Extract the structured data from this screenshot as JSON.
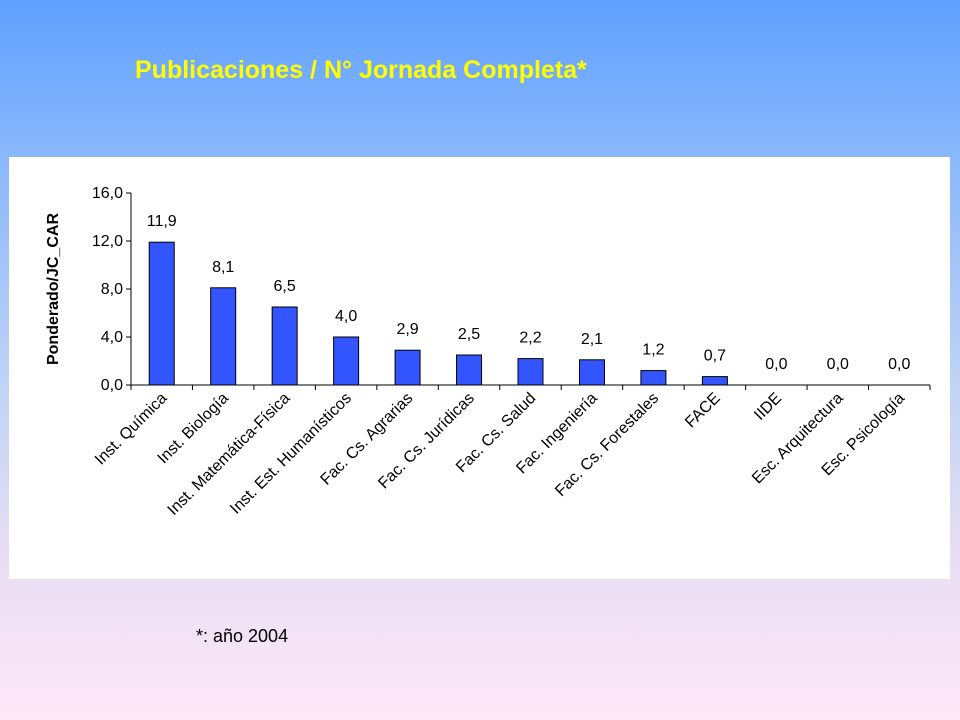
{
  "slide": {
    "title": "Publicaciones / N° Jornada Completa*",
    "footnote": "*: año 2004"
  },
  "chart_data": {
    "type": "bar",
    "title": "Publicaciones / N° Jornada Completa*",
    "xlabel": "",
    "ylabel": "Ponderado/JC_CAR",
    "ylim": [
      0,
      16
    ],
    "yticks": [
      0,
      4,
      8,
      12,
      16
    ],
    "ytick_labels": [
      "0,0",
      "4,0",
      "8,0",
      "12,0",
      "16,0"
    ],
    "grid": false,
    "legend": "none",
    "bar_color": "#3355ff",
    "categories": [
      "Inst. Química",
      "Inst. Biología",
      "Inst. Matemática-Física",
      "Inst. Est. Humanísticos",
      "Fac. Cs. Agrarias",
      "Fac. Cs. Jurídicas",
      "Fac. Cs. Salud",
      "Fac. Ingeniería",
      "Fac. Cs. Forestales",
      "FACE",
      "IIDE",
      "Esc. Arquitectura",
      "Esc. Psicología"
    ],
    "values": [
      11.9,
      8.1,
      6.5,
      4.0,
      2.9,
      2.5,
      2.2,
      2.1,
      1.2,
      0.7,
      0.0,
      0.0,
      0.0
    ],
    "data_labels": [
      "11,9",
      "8,1",
      "6,5",
      "4,0",
      "2,9",
      "2,5",
      "2,2",
      "2,1",
      "1,2",
      "0,7",
      "0,0",
      "0,0",
      "0,0"
    ]
  }
}
